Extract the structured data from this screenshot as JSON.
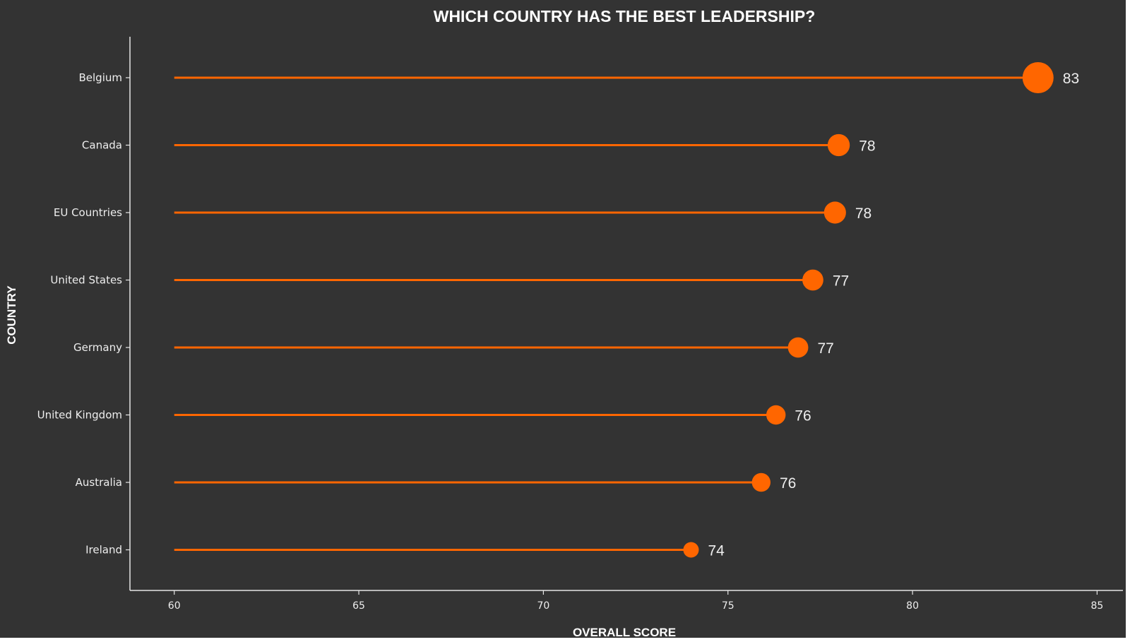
{
  "chart_data": {
    "type": "lollipop",
    "title": "WHICH COUNTRY HAS THE BEST LEADERSHIP?",
    "xlabel": "OVERALL SCORE",
    "ylabel": "COUNTRY",
    "categories": [
      "Belgium",
      "Canada",
      "EU Countries",
      "United States",
      "Germany",
      "United Kingdom",
      "Australia",
      "Ireland"
    ],
    "values": [
      83.4,
      78.0,
      77.9,
      77.3,
      76.9,
      76.3,
      75.9,
      74.0
    ],
    "value_labels": [
      "83",
      "78",
      "78",
      "77",
      "77",
      "76",
      "76",
      "74"
    ],
    "baseline": 60,
    "xlim": [
      58.8,
      85.7
    ],
    "xticks": [
      60,
      65,
      70,
      75,
      80,
      85
    ],
    "grid": false,
    "legend": "none",
    "colors": {
      "background": "#333333",
      "mark": "#ff6600",
      "axis": "#e6e6e6",
      "text": "#eeeeee"
    }
  }
}
